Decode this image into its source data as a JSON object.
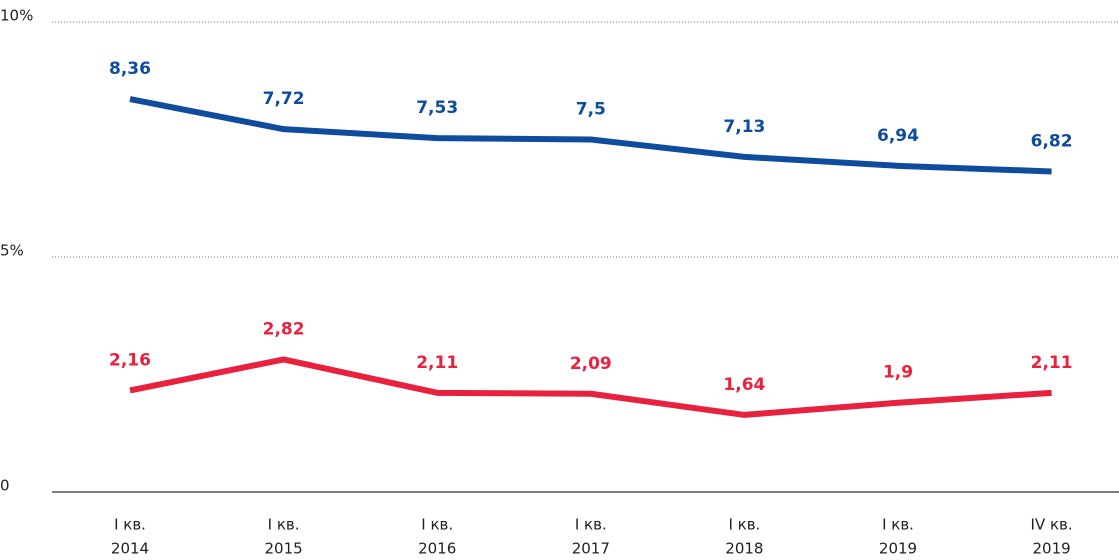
{
  "chart_data": {
    "type": "line",
    "categories": [
      [
        "I кв.",
        "2014"
      ],
      [
        "I кв.",
        "2015"
      ],
      [
        "I кв.",
        "2016"
      ],
      [
        "I кв.",
        "2017"
      ],
      [
        "I кв.",
        "2018"
      ],
      [
        "I кв.",
        "2019"
      ],
      [
        "IV кв.",
        "2019"
      ]
    ],
    "series": [
      {
        "color": "#0f4c9e",
        "values": [
          8.36,
          7.72,
          7.53,
          7.5,
          7.13,
          6.94,
          6.82
        ],
        "value_labels": [
          "8,36",
          "7,72",
          "7,53",
          "7,5",
          "7,13",
          "6,94",
          "6,82"
        ]
      },
      {
        "color": "#e8213f",
        "values": [
          2.16,
          2.82,
          2.11,
          2.09,
          1.64,
          1.9,
          2.11
        ],
        "value_labels": [
          "2,16",
          "2,82",
          "2,11",
          "2,09",
          "1,64",
          "1,9",
          "2,11"
        ]
      }
    ],
    "ylim": [
      0,
      10
    ],
    "yticks": [
      0,
      {
        "value": 5,
        "label": "5%"
      },
      {
        "value": 10,
        "label": "10%"
      }
    ],
    "grid": true
  }
}
